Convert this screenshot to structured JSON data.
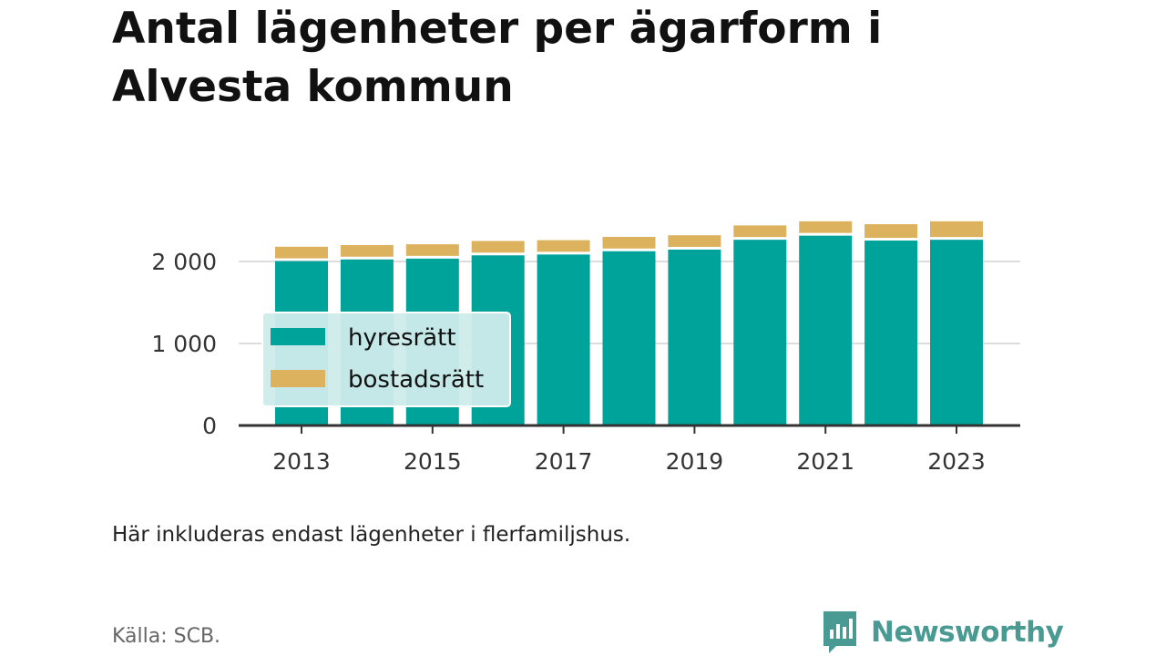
{
  "title": "Antal lägenheter per ägarform i Alvesta kommun",
  "note": "Här inkluderas endast lägenheter i flerfamiljshus.",
  "source": "Källa: SCB.",
  "brand": {
    "name": "Newsworthy",
    "color": "#4a9a94",
    "icon": "newsworthy-logo-icon"
  },
  "colors": {
    "hyresratt": "#00a39a",
    "bostadsratt": "#dcb25e",
    "axis": "#333333",
    "grid": "#dddddd",
    "legend_bg": "#cdeceb"
  },
  "chart_data": {
    "type": "bar",
    "stacked": true,
    "categories": [
      "2013",
      "2014",
      "2015",
      "2016",
      "2017",
      "2018",
      "2019",
      "2020",
      "2021",
      "2022",
      "2023"
    ],
    "x_tick_labels": [
      "2013",
      "2015",
      "2017",
      "2019",
      "2021",
      "2023"
    ],
    "series": [
      {
        "name": "hyresrätt",
        "values": [
          2005,
          2025,
          2035,
          2075,
          2085,
          2125,
          2145,
          2265,
          2315,
          2255,
          2265
        ]
      },
      {
        "name": "bostadsrätt",
        "values": [
          175,
          175,
          175,
          175,
          175,
          175,
          175,
          175,
          175,
          200,
          225
        ]
      }
    ],
    "y_ticks": [
      0,
      1000,
      2000
    ],
    "y_tick_labels": [
      "0",
      "1 000",
      "2 000"
    ],
    "ylim": [
      0,
      2600
    ],
    "grid": true,
    "legend_position": "left"
  }
}
